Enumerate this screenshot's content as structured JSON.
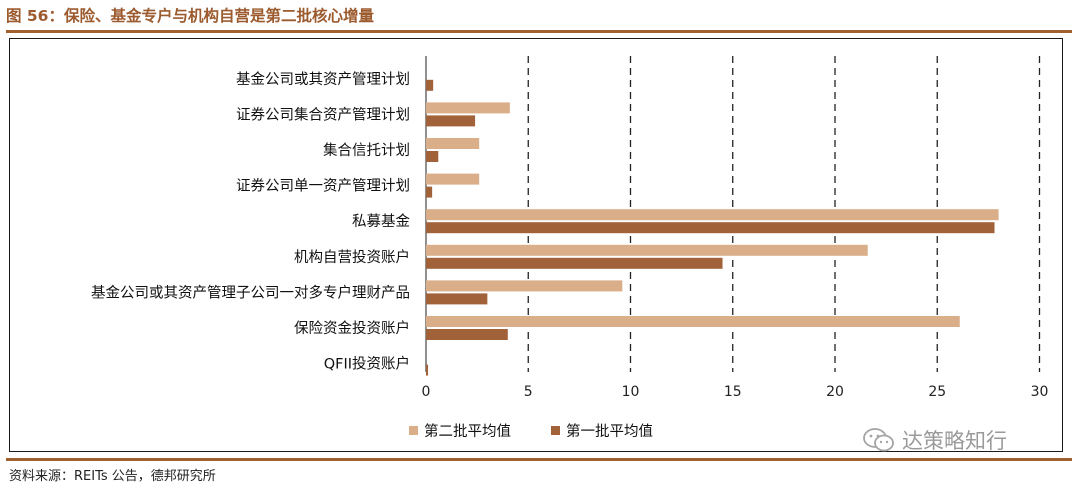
{
  "header": {
    "title": "图 56：保险、基金专户与机构自营是第二批核心增量"
  },
  "chart_data": {
    "type": "bar",
    "orientation": "horizontal",
    "categories": [
      "基金公司或其资产管理计划",
      "证券公司集合资产管理计划",
      "集合信托计划",
      "证券公司单一资产管理计划",
      "私募基金",
      "机构自营投资账户",
      "基金公司或其资产管理子公司一对多专户理财产品",
      "保险资金投资账户",
      "QFII投资账户"
    ],
    "series": [
      {
        "name": "第二批平均值",
        "color": "#d9ae88",
        "values": [
          0,
          4.1,
          2.6,
          2.6,
          28.0,
          21.6,
          9.6,
          26.1,
          0
        ]
      },
      {
        "name": "第一批平均值",
        "color": "#a1623a",
        "values": [
          0.35,
          2.4,
          0.6,
          0.3,
          27.8,
          14.5,
          3.0,
          4.0,
          0.1
        ]
      }
    ],
    "xlim": [
      0,
      30
    ],
    "xticks": [
      "0",
      "5",
      "10",
      "15",
      "20",
      "25",
      "30"
    ],
    "grid": "vertical dashed",
    "legend_position": "bottom"
  },
  "watermark": {
    "text": "达策略知行"
  },
  "footer": {
    "source": "资料来源：REITs 公告，德邦研究所"
  }
}
